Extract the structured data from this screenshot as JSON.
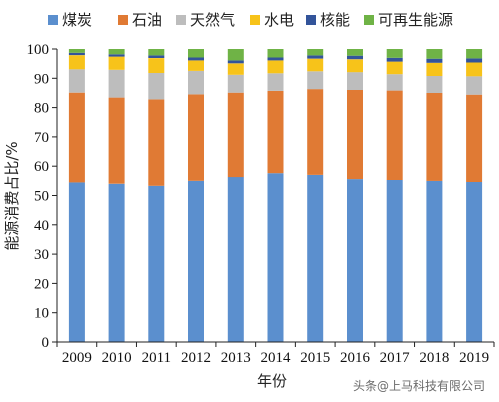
{
  "chart_data": {
    "type": "bar",
    "stacked": true,
    "categories": [
      "2009",
      "2010",
      "2011",
      "2012",
      "2013",
      "2014",
      "2015",
      "2016",
      "2017",
      "2018",
      "2019"
    ],
    "series": [
      {
        "name": "煤炭",
        "color": "#5b8fce",
        "values": [
          54.5,
          54.0,
          53.3,
          55.0,
          56.3,
          57.6,
          57.0,
          55.6,
          55.3,
          55.0,
          54.6
        ]
      },
      {
        "name": "石油",
        "color": "#e07a34",
        "values": [
          30.6,
          29.4,
          29.5,
          29.5,
          28.8,
          28.1,
          29.3,
          30.4,
          30.5,
          30.0,
          29.8
        ]
      },
      {
        "name": "天然气",
        "color": "#bdbdbd",
        "values": [
          8.0,
          9.5,
          9.0,
          8.0,
          6.1,
          6.0,
          6.1,
          6.1,
          5.6,
          5.8,
          6.3
        ]
      },
      {
        "name": "水电",
        "color": "#f7c31a",
        "values": [
          4.8,
          4.5,
          5.1,
          3.6,
          3.9,
          4.4,
          4.3,
          4.4,
          4.3,
          4.5,
          4.7
        ]
      },
      {
        "name": "核能",
        "color": "#33549a",
        "values": [
          0.8,
          0.8,
          0.9,
          1.0,
          1.0,
          1.0,
          1.1,
          1.2,
          1.3,
          1.4,
          1.4
        ]
      },
      {
        "name": "可再生能源",
        "color": "#6fb346",
        "values": [
          1.3,
          1.8,
          2.2,
          2.9,
          3.9,
          2.9,
          2.2,
          2.3,
          3.0,
          3.3,
          3.2
        ]
      }
    ],
    "ylim": [
      0,
      100
    ],
    "yticks": [
      0,
      10,
      20,
      30,
      40,
      50,
      60,
      70,
      80,
      90,
      100
    ],
    "xlabel": "年份",
    "ylabel": "能源消费占比/%",
    "legend_position": "top",
    "grid": false
  },
  "watermark": "头条@上马科技有限公司"
}
